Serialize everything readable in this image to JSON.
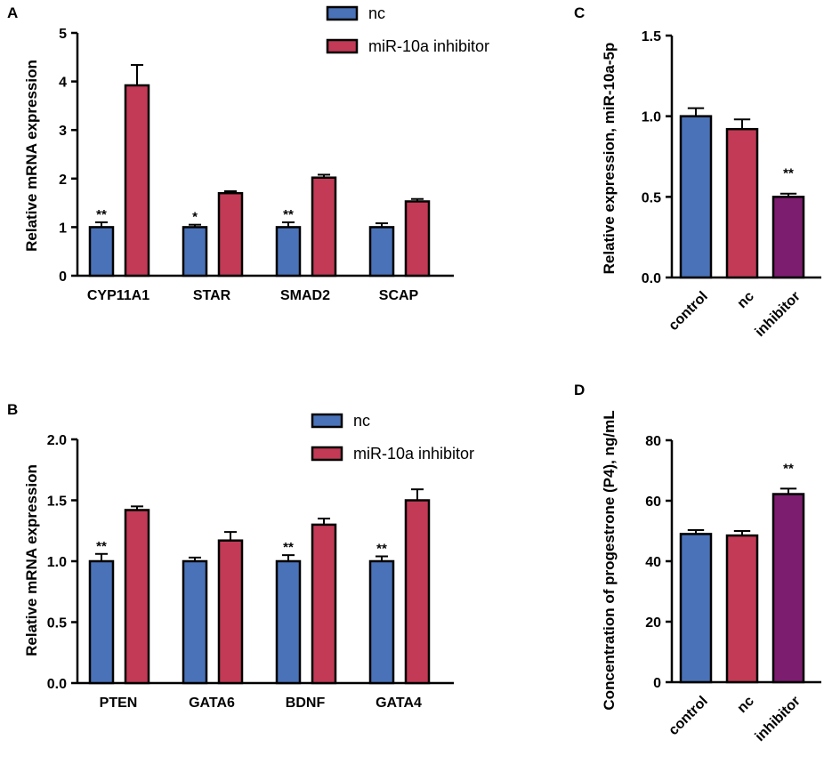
{
  "colors": {
    "nc": "#4a72b8",
    "inhibitor": "#c23a55",
    "control": "#4a72b8",
    "inhibitor_purple": "#7c1d6f",
    "axis": "#000000"
  },
  "chart_data": [
    {
      "panel": "A",
      "type": "bar",
      "categories": [
        "CYP11A1",
        "STAR",
        "SMAD2",
        "SCAP"
      ],
      "series": [
        {
          "name": "nc",
          "values": [
            1.0,
            1.0,
            1.0,
            1.0
          ],
          "errors": [
            0.1,
            0.05,
            0.1,
            0.08
          ]
        },
        {
          "name": "miR-10a inhibitor",
          "values": [
            3.92,
            1.7,
            2.02,
            1.53
          ],
          "errors": [
            0.42,
            0.04,
            0.06,
            0.05
          ]
        }
      ],
      "significance": [
        "**",
        "*",
        "**",
        ""
      ],
      "ylabel": "Relative mRNA expression",
      "ylim": [
        0,
        5
      ],
      "yticks": [
        "0",
        "1",
        "2",
        "3",
        "4",
        "5"
      ],
      "legend": [
        "nc",
        "miR-10a inhibitor"
      ]
    },
    {
      "panel": "B",
      "type": "bar",
      "categories": [
        "PTEN",
        "GATA6",
        "BDNF",
        "GATA4"
      ],
      "series": [
        {
          "name": "nc",
          "values": [
            1.0,
            1.0,
            1.0,
            1.0
          ],
          "errors": [
            0.06,
            0.03,
            0.05,
            0.04
          ]
        },
        {
          "name": "miR-10a inhibitor",
          "values": [
            1.42,
            1.17,
            1.3,
            1.5
          ],
          "errors": [
            0.03,
            0.07,
            0.05,
            0.09
          ]
        }
      ],
      "significance": [
        "**",
        "",
        "**",
        "**"
      ],
      "ylabel": "Relative mRNA expression",
      "ylim": [
        0,
        2
      ],
      "yticks": [
        "0.0",
        "0.5",
        "1.0",
        "1.5",
        "2.0"
      ],
      "legend": [
        "nc",
        "miR-10a inhibitor"
      ]
    },
    {
      "panel": "C",
      "type": "bar",
      "categories": [
        "control",
        "nc",
        "inhibitor"
      ],
      "values": [
        1.0,
        0.92,
        0.5
      ],
      "errors": [
        0.05,
        0.06,
        0.02
      ],
      "significance": [
        "",
        "",
        "**"
      ],
      "ylabel": "Relative expression, miR-10a-5p",
      "ylim": [
        0,
        1.5
      ],
      "yticks": [
        "0.0",
        "0.5",
        "1.0",
        "1.5"
      ]
    },
    {
      "panel": "D",
      "type": "bar",
      "categories": [
        "control",
        "nc",
        "inhibitor"
      ],
      "values": [
        49,
        48.5,
        62.2
      ],
      "errors": [
        1.3,
        1.5,
        1.8
      ],
      "significance": [
        "",
        "",
        "**"
      ],
      "ylabel": "Concentration of progestrone (P4), ng/mL",
      "ylim": [
        0,
        80
      ],
      "yticks": [
        "0",
        "20",
        "40",
        "60",
        "80"
      ]
    }
  ]
}
